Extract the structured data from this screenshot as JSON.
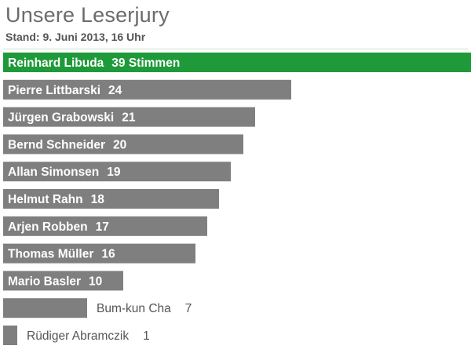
{
  "title": "Unsere Leserjury",
  "subtitle": "Stand: 9. Juni 2013, 16 Uhr",
  "colors": {
    "highlight": "#1f9a3a",
    "bar": "#7f7f7f",
    "label_on_bar": "#ffffff",
    "label_outside": "#555555"
  },
  "chart_data": {
    "type": "bar",
    "orientation": "horizontal",
    "categories": [
      "Reinhard Libuda",
      "Pierre Littbarski",
      "Jürgen Grabowski",
      "Bernd Schneider",
      "Allan Simonsen",
      "Helmut Rahn",
      "Arjen Robben",
      "Thomas Müller",
      "Mario Basler",
      "Bum-kun Cha",
      "Rüdiger Abramczik"
    ],
    "values": [
      39,
      24,
      21,
      20,
      19,
      18,
      17,
      16,
      10,
      7,
      1
    ],
    "value_labels": [
      "39 Stimmen",
      "24",
      "21",
      "20",
      "19",
      "18",
      "17",
      "16",
      "10",
      "7",
      "1"
    ],
    "highlight_index": 0,
    "xlim": [
      0,
      39
    ],
    "title": "Unsere Leserjury",
    "subtitle": "Stand: 9. Juni 2013, 16 Uhr",
    "xlabel": "",
    "ylabel": "",
    "grid": false,
    "legend": "none"
  }
}
